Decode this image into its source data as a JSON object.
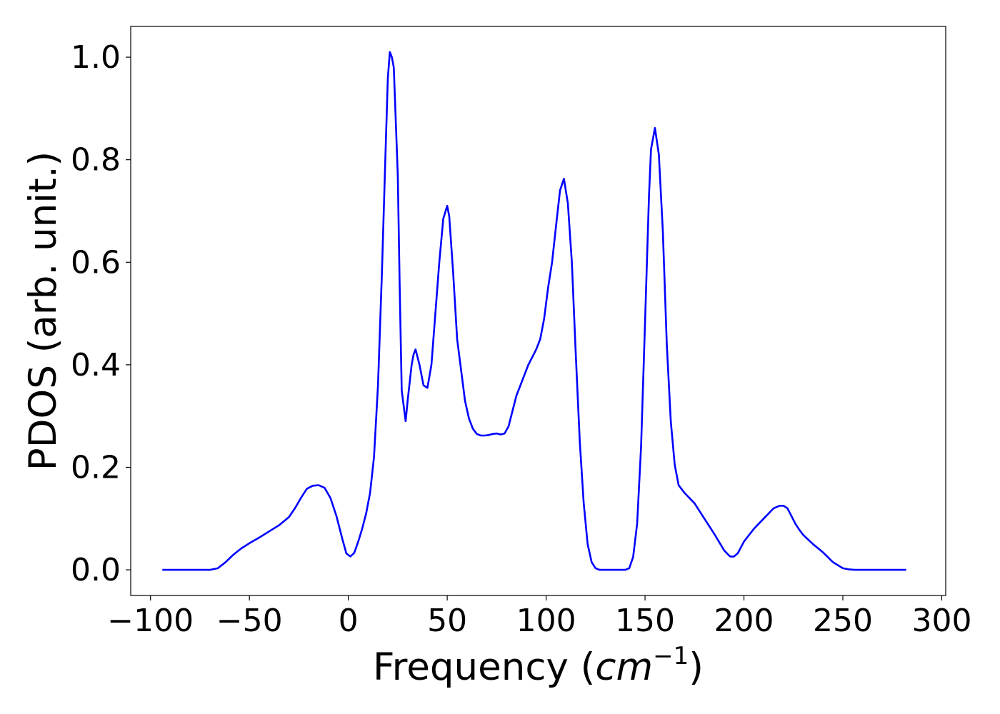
{
  "chart_data": {
    "type": "line",
    "title": "",
    "xlabel": "Frequency ",
    "xlabel_parts": {
      "prefix": "Frequency (",
      "var": "cm",
      "exponent": "−1",
      "suffix": ")"
    },
    "ylabel": "PDOS (arb. unit.)",
    "xlim": [
      -110,
      302
    ],
    "ylim": [
      -0.05,
      1.06
    ],
    "xticks": [
      -100,
      -50,
      0,
      50,
      100,
      150,
      200,
      250,
      300
    ],
    "xtick_labels": [
      "−100",
      "−50",
      "0",
      "50",
      "100",
      "150",
      "200",
      "250",
      "300"
    ],
    "yticks": [
      0.0,
      0.2,
      0.4,
      0.6,
      0.8,
      1.0
    ],
    "ytick_labels": [
      "0.0",
      "0.2",
      "0.4",
      "0.6",
      "0.8",
      "1.0"
    ],
    "grid": false,
    "legend": "none",
    "series": [
      {
        "color": "#0000ff",
        "x": [
          -94,
          -70,
          -66,
          -62,
          -58,
          -54,
          -50,
          -45,
          -40,
          -35,
          -30,
          -27,
          -24,
          -21,
          -18,
          -15,
          -12,
          -9,
          -6,
          -3,
          -1,
          1,
          3,
          5,
          7,
          9,
          11,
          13,
          15,
          17,
          19,
          20,
          21,
          22,
          23,
          25,
          26,
          27,
          29,
          30,
          32,
          33,
          34,
          36,
          38,
          40,
          42,
          44,
          46,
          48,
          50,
          51,
          53,
          55,
          57,
          59,
          61,
          63,
          65,
          67,
          69,
          71,
          73,
          75,
          77,
          79,
          81,
          83,
          85,
          87,
          89,
          91,
          93,
          95,
          97,
          99,
          101,
          103,
          105,
          107,
          109,
          111,
          113,
          115,
          117,
          119,
          121,
          123,
          125,
          127,
          130,
          135,
          140,
          142,
          144,
          146,
          148,
          150,
          152,
          153,
          155,
          157,
          159,
          161,
          163,
          165,
          167,
          170,
          175,
          180,
          185,
          190,
          193,
          195,
          197,
          200,
          205,
          210,
          215,
          218,
          220,
          222,
          224,
          226,
          228,
          230,
          235,
          240,
          245,
          250,
          253,
          256,
          258,
          260,
          265,
          270,
          282
        ],
        "y": [
          0.0,
          0.0,
          0.003,
          0.015,
          0.03,
          0.042,
          0.052,
          0.063,
          0.075,
          0.087,
          0.103,
          0.12,
          0.14,
          0.158,
          0.164,
          0.165,
          0.16,
          0.14,
          0.105,
          0.06,
          0.032,
          0.026,
          0.033,
          0.055,
          0.08,
          0.11,
          0.15,
          0.22,
          0.36,
          0.58,
          0.84,
          0.96,
          1.01,
          1.0,
          0.98,
          0.77,
          0.55,
          0.35,
          0.29,
          0.33,
          0.4,
          0.42,
          0.43,
          0.4,
          0.36,
          0.355,
          0.4,
          0.5,
          0.6,
          0.685,
          0.71,
          0.69,
          0.58,
          0.45,
          0.39,
          0.33,
          0.295,
          0.275,
          0.265,
          0.262,
          0.262,
          0.263,
          0.265,
          0.266,
          0.264,
          0.266,
          0.28,
          0.31,
          0.34,
          0.36,
          0.38,
          0.4,
          0.415,
          0.43,
          0.45,
          0.49,
          0.55,
          0.6,
          0.67,
          0.74,
          0.763,
          0.715,
          0.6,
          0.42,
          0.25,
          0.13,
          0.05,
          0.015,
          0.003,
          0.0,
          0.0,
          0.0,
          0.0,
          0.003,
          0.025,
          0.09,
          0.24,
          0.48,
          0.73,
          0.82,
          0.862,
          0.81,
          0.66,
          0.44,
          0.29,
          0.205,
          0.165,
          0.15,
          0.13,
          0.1,
          0.07,
          0.038,
          0.026,
          0.026,
          0.033,
          0.055,
          0.08,
          0.1,
          0.12,
          0.125,
          0.125,
          0.12,
          0.105,
          0.09,
          0.078,
          0.068,
          0.05,
          0.034,
          0.015,
          0.003,
          0.001,
          0.0,
          0.0,
          0.0,
          0.0,
          0.0,
          0.0
        ]
      }
    ]
  }
}
